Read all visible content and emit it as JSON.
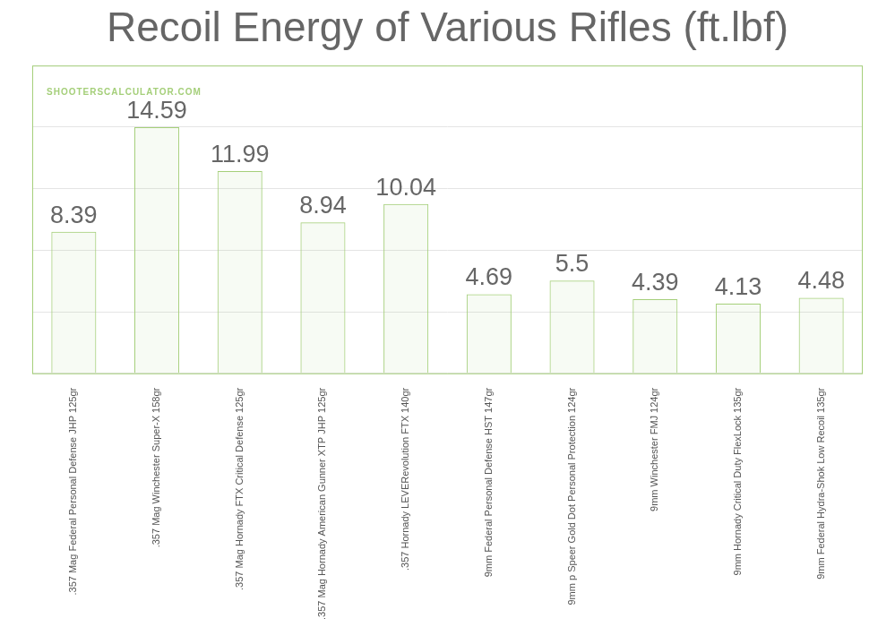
{
  "chart_data": {
    "type": "bar",
    "title": "Recoil Energy of Various Rifles (ft.lbf)",
    "annotations": [
      "SHOOTERSCALCULATOR.COM"
    ],
    "categories": [
      ".357 Mag Federal Personal Defense JHP 125gr",
      ".357 Mag Winchester Super-X 158gr",
      ".357 Mag Hornady FTX Critical Defense 125gr",
      ".357 Mag Hornady American Gunner XTP JHP 125gr",
      ".357 Hornady LEVERevolution FTX 140gr",
      "9mm Federal Personal Defense HST 147gr",
      "9mm p Speer Gold Dot Personal Protection 124gr",
      "9mm Winchester FMJ 124gr",
      "9mm Hornady Critical Duty FlexLock 135gr",
      "9mm Federal Hydra-Shok Low Recoil 135gr"
    ],
    "values": [
      8.39,
      14.59,
      11.99,
      8.94,
      10.04,
      4.69,
      5.5,
      4.39,
      4.13,
      4.48
    ],
    "color": "#a5cf7a",
    "ylim": [
      0,
      18.24
    ],
    "yticks": [
      0,
      3.65,
      7.3,
      10.94,
      14.59,
      18.24
    ],
    "grid": true,
    "data_labels": true,
    "tick_labels": "x"
  }
}
